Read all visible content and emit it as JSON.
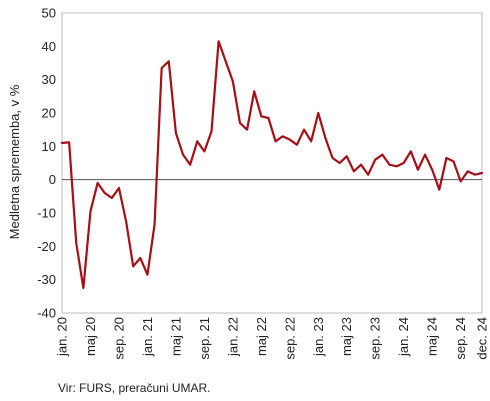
{
  "chart_data": {
    "type": "line",
    "title": "",
    "xlabel": "",
    "ylabel": "Medletna sprememba, v %",
    "ylim": [
      -40,
      50
    ],
    "yticks": [
      -40,
      -30,
      -20,
      -10,
      0,
      10,
      20,
      30,
      40,
      50
    ],
    "grid": false,
    "legend": "none",
    "line_color": "#a50f15",
    "x_tick_labels": [
      {
        "label": "jan. 20",
        "index": 0
      },
      {
        "label": "maj 20",
        "index": 4
      },
      {
        "label": "sep. 20",
        "index": 8
      },
      {
        "label": "jan. 21",
        "index": 12
      },
      {
        "label": "maj 21",
        "index": 16
      },
      {
        "label": "sep. 21",
        "index": 20
      },
      {
        "label": "jan. 22",
        "index": 24
      },
      {
        "label": "maj 22",
        "index": 28
      },
      {
        "label": "sep. 22",
        "index": 32
      },
      {
        "label": "jan. 23",
        "index": 36
      },
      {
        "label": "maj 23",
        "index": 40
      },
      {
        "label": "sep. 23",
        "index": 44
      },
      {
        "label": "jan. 24",
        "index": 48
      },
      {
        "label": "maj 24",
        "index": 52
      },
      {
        "label": "sep. 24",
        "index": 56
      },
      {
        "label": "dec. 24",
        "index": 59
      }
    ],
    "series": [
      {
        "values": [
          11,
          11.2,
          -19,
          -32.5,
          -9.5,
          -1,
          -4,
          -5.5,
          -2.5,
          -12.5,
          -26,
          -23.5,
          -28.5,
          -13.5,
          33.5,
          35.5,
          14,
          7.5,
          4.5,
          11.5,
          8.5,
          14.5,
          41.5,
          35.5,
          29.5,
          17,
          15,
          26.5,
          19,
          18.5,
          11.5,
          13,
          12,
          10.5,
          15,
          11.5,
          20,
          12.5,
          6.5,
          5,
          7,
          2.5,
          4.5,
          1.5,
          6,
          7.5,
          4.5,
          4,
          5,
          8.5,
          3,
          7.5,
          3,
          -3,
          6.5,
          5.5,
          -0.5,
          2.5,
          1.5,
          2
        ]
      }
    ]
  },
  "footer": {
    "source": "Vir: FURS, preračuni UMAR."
  }
}
